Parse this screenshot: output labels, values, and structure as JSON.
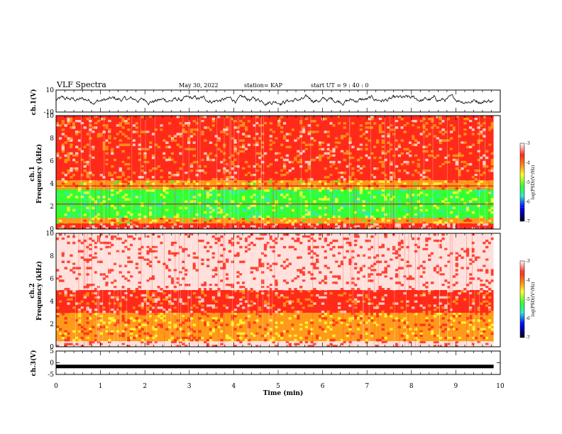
{
  "header": {
    "title": "VLF Spectra",
    "date": "May 30, 2022",
    "station": "station= KAP",
    "start": "start  UT =   9 : 40 : 0"
  },
  "chart_data": [
    {
      "type": "line",
      "panel": "ch1-waveform",
      "ylabel": "ch.1(V)",
      "ylim": [
        -10,
        10
      ],
      "yticks": [
        "10",
        "-10"
      ],
      "x_range_min": [
        0,
        9.85
      ],
      "description_values": "noisy waveform oscillating roughly between -5 and 5 V, mean about 1 V",
      "color": "#000000"
    },
    {
      "type": "heatmap",
      "panel": "ch1-spectrogram",
      "ylabel": "Frequency (kHz)",
      "panel_label": "ch.1",
      "ylim": [
        0,
        10
      ],
      "yticks": [
        "0",
        "2",
        "4",
        "6",
        "8",
        "10"
      ],
      "bands": [
        {
          "from_khz": 0,
          "to_khz": 0.5,
          "level": -3.2
        },
        {
          "from_khz": 0.5,
          "to_khz": 1.0,
          "level": -4.2
        },
        {
          "from_khz": 1.0,
          "to_khz": 3.5,
          "level": -5.0
        },
        {
          "from_khz": 3.5,
          "to_khz": 4.3,
          "level": -4.1
        },
        {
          "from_khz": 4.3,
          "to_khz": 10,
          "level": -3.6
        }
      ],
      "lines_khz": [
        2.2,
        3.8
      ],
      "colorbar": {
        "label": "log(PSD)(V²/Hz)",
        "ticks": [
          "-3",
          "-4",
          "-5",
          "-6",
          "-7"
        ],
        "range": [
          -7,
          -3
        ]
      }
    },
    {
      "type": "heatmap",
      "panel": "ch2-spectrogram",
      "ylabel": "Frequency (kHz)",
      "panel_label": "ch.2",
      "ylim": [
        0,
        10
      ],
      "yticks": [
        "0",
        "2",
        "4",
        "6",
        "8",
        "10"
      ],
      "bands": [
        {
          "from_khz": 0,
          "to_khz": 0.5,
          "level": -3.1
        },
        {
          "from_khz": 0.5,
          "to_khz": 3.0,
          "level": -4.0
        },
        {
          "from_khz": 3.0,
          "to_khz": 5.0,
          "level": -3.5
        },
        {
          "from_khz": 5.0,
          "to_khz": 10,
          "level": -3.0
        }
      ],
      "colorbar": {
        "label": "log(PSD)(V²/Hz)",
        "ticks": [
          "-3",
          "-4",
          "-5",
          "-6",
          "-7"
        ],
        "range": [
          -7,
          -3
        ]
      }
    },
    {
      "type": "line",
      "panel": "ch3-waveform",
      "ylabel": "ch.3(V)",
      "ylim": [
        -5,
        5
      ],
      "yticks": [
        "5",
        "0",
        "-5"
      ],
      "level_v": -1.6,
      "color": "#000000"
    }
  ],
  "x_axis": {
    "label": "Time (min)",
    "ticks": [
      "0",
      "1",
      "2",
      "3",
      "4",
      "5",
      "6",
      "7",
      "8",
      "9",
      "10"
    ],
    "range": [
      0,
      10
    ]
  },
  "colors": {
    "red": "#ff2a1a",
    "orange": "#ff9a1a",
    "yellow": "#ffff33",
    "green": "#33ff33",
    "cyan": "#33e6cc",
    "blue": "#0000ff",
    "black": "#000000"
  }
}
